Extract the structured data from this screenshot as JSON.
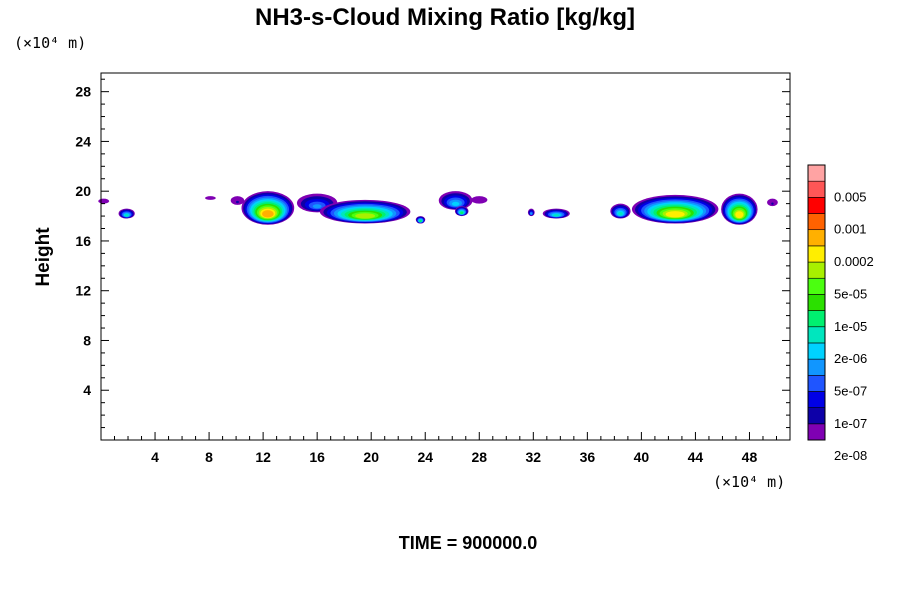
{
  "chart_data": {
    "type": "heatmap",
    "title": "NH3-s-Cloud Mixing Ratio [kg/kg]",
    "xlabel": "",
    "ylabel": "Height",
    "x_unit": "(×10⁴ m)",
    "y_unit": "(×10⁴ m)",
    "xlim": [
      0,
      51
    ],
    "ylim": [
      0,
      29.5
    ],
    "x_ticks": [
      4,
      8,
      12,
      16,
      20,
      24,
      28,
      32,
      36,
      40,
      44,
      48
    ],
    "y_ticks": [
      4,
      8,
      12,
      16,
      20,
      24,
      28
    ],
    "colorbar": {
      "labels": [
        "0.005",
        "0.001",
        "0.0002",
        "5e-05",
        "1e-05",
        "2e-06",
        "5e-07",
        "1e-07",
        "2e-08"
      ],
      "colors": [
        "#7f00b3",
        "#0d00a8",
        "#0000e6",
        "#1f55ff",
        "#1196ff",
        "#00d2ff",
        "#00e6be",
        "#00f070",
        "#2be000",
        "#4bff10",
        "#a8f000",
        "#ffee00",
        "#ffb000",
        "#ff6200",
        "#ff0000",
        "#ff5656",
        "#ffa3a3"
      ]
    },
    "cloud_regions": [
      {
        "x": [
          -0.2,
          0.6
        ],
        "y": [
          19.0,
          19.4
        ],
        "max_level": 0
      },
      {
        "x": [
          1.3,
          2.5
        ],
        "y": [
          17.8,
          18.6
        ],
        "max_level": 6
      },
      {
        "x": [
          7.7,
          8.5
        ],
        "y": [
          19.3,
          19.6
        ],
        "max_level": 0
      },
      {
        "x": [
          9.6,
          10.6
        ],
        "y": [
          18.9,
          19.6
        ],
        "max_level": 1
      },
      {
        "x": [
          10.4,
          14.3
        ],
        "y": [
          17.3,
          20.0
        ],
        "max_level": 12
      },
      {
        "x": [
          14.5,
          17.5
        ],
        "y": [
          18.3,
          19.8
        ],
        "max_level": 4
      },
      {
        "x": [
          16.2,
          22.9
        ],
        "y": [
          17.4,
          19.3
        ],
        "max_level": 10
      },
      {
        "x": [
          23.3,
          24.0
        ],
        "y": [
          17.4,
          18.0
        ],
        "max_level": 7
      },
      {
        "x": [
          25.0,
          27.5
        ],
        "y": [
          18.5,
          20.0
        ],
        "max_level": 5
      },
      {
        "x": [
          26.2,
          27.2
        ],
        "y": [
          18.0,
          18.8
        ],
        "max_level": 7
      },
      {
        "x": [
          27.4,
          28.6
        ],
        "y": [
          19.0,
          19.6
        ],
        "max_level": 0
      },
      {
        "x": [
          31.6,
          32.1
        ],
        "y": [
          18.0,
          18.6
        ],
        "max_level": 4
      },
      {
        "x": [
          32.7,
          34.7
        ],
        "y": [
          17.8,
          18.6
        ],
        "max_level": 6
      },
      {
        "x": [
          37.7,
          39.2
        ],
        "y": [
          17.8,
          19.0
        ],
        "max_level": 6
      },
      {
        "x": [
          39.3,
          45.7
        ],
        "y": [
          17.4,
          19.7
        ],
        "max_level": 11
      },
      {
        "x": [
          45.9,
          48.6
        ],
        "y": [
          17.3,
          19.8
        ],
        "max_level": 11
      },
      {
        "x": [
          49.3,
          50.1
        ],
        "y": [
          18.8,
          19.4
        ],
        "max_level": 1
      }
    ]
  },
  "footer": {
    "time_label": "TIME = 900000.0"
  }
}
